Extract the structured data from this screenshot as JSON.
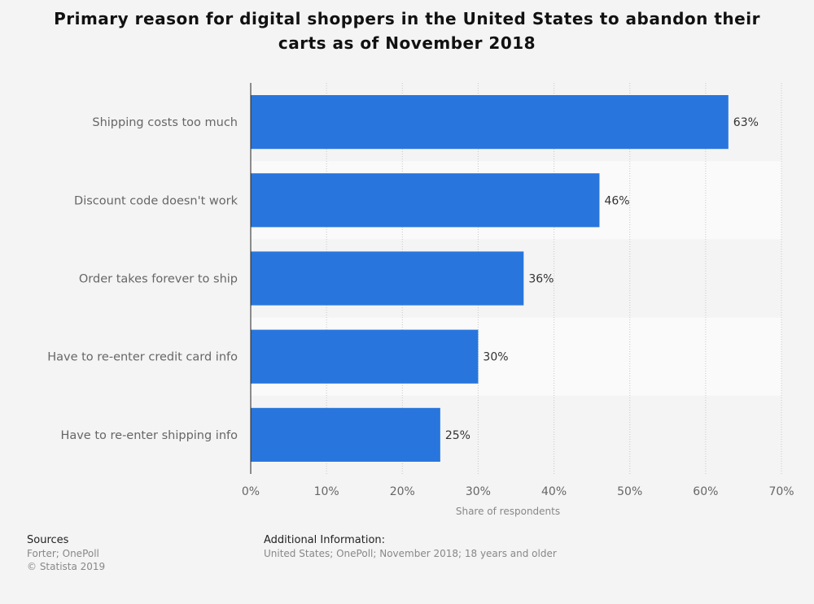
{
  "chart_data": {
    "type": "bar",
    "orientation": "horizontal",
    "title": "Primary reason for digital shoppers in the United States to abandon their carts as of November 2018",
    "categories": [
      "Shipping costs too much",
      "Discount code doesn't work",
      "Order takes forever to ship",
      "Have to re-enter credit card info",
      "Have to re-enter shipping info"
    ],
    "values": [
      63,
      46,
      36,
      30,
      25
    ],
    "value_labels": [
      "63%",
      "46%",
      "36%",
      "30%",
      "25%"
    ],
    "xlabel": "Share of respondents",
    "xlim": [
      0,
      70
    ],
    "ticks": [
      "0%",
      "10%",
      "20%",
      "30%",
      "40%",
      "50%",
      "60%",
      "70%"
    ],
    "grid": true,
    "bar_color": "#2876dd"
  },
  "footer": {
    "sources_title": "Sources",
    "sources": "Forter; OnePoll",
    "copyright": "© Statista 2019",
    "additional_title": "Additional Information:",
    "additional": "United States; OnePoll; November 2018; 18 years and older"
  }
}
